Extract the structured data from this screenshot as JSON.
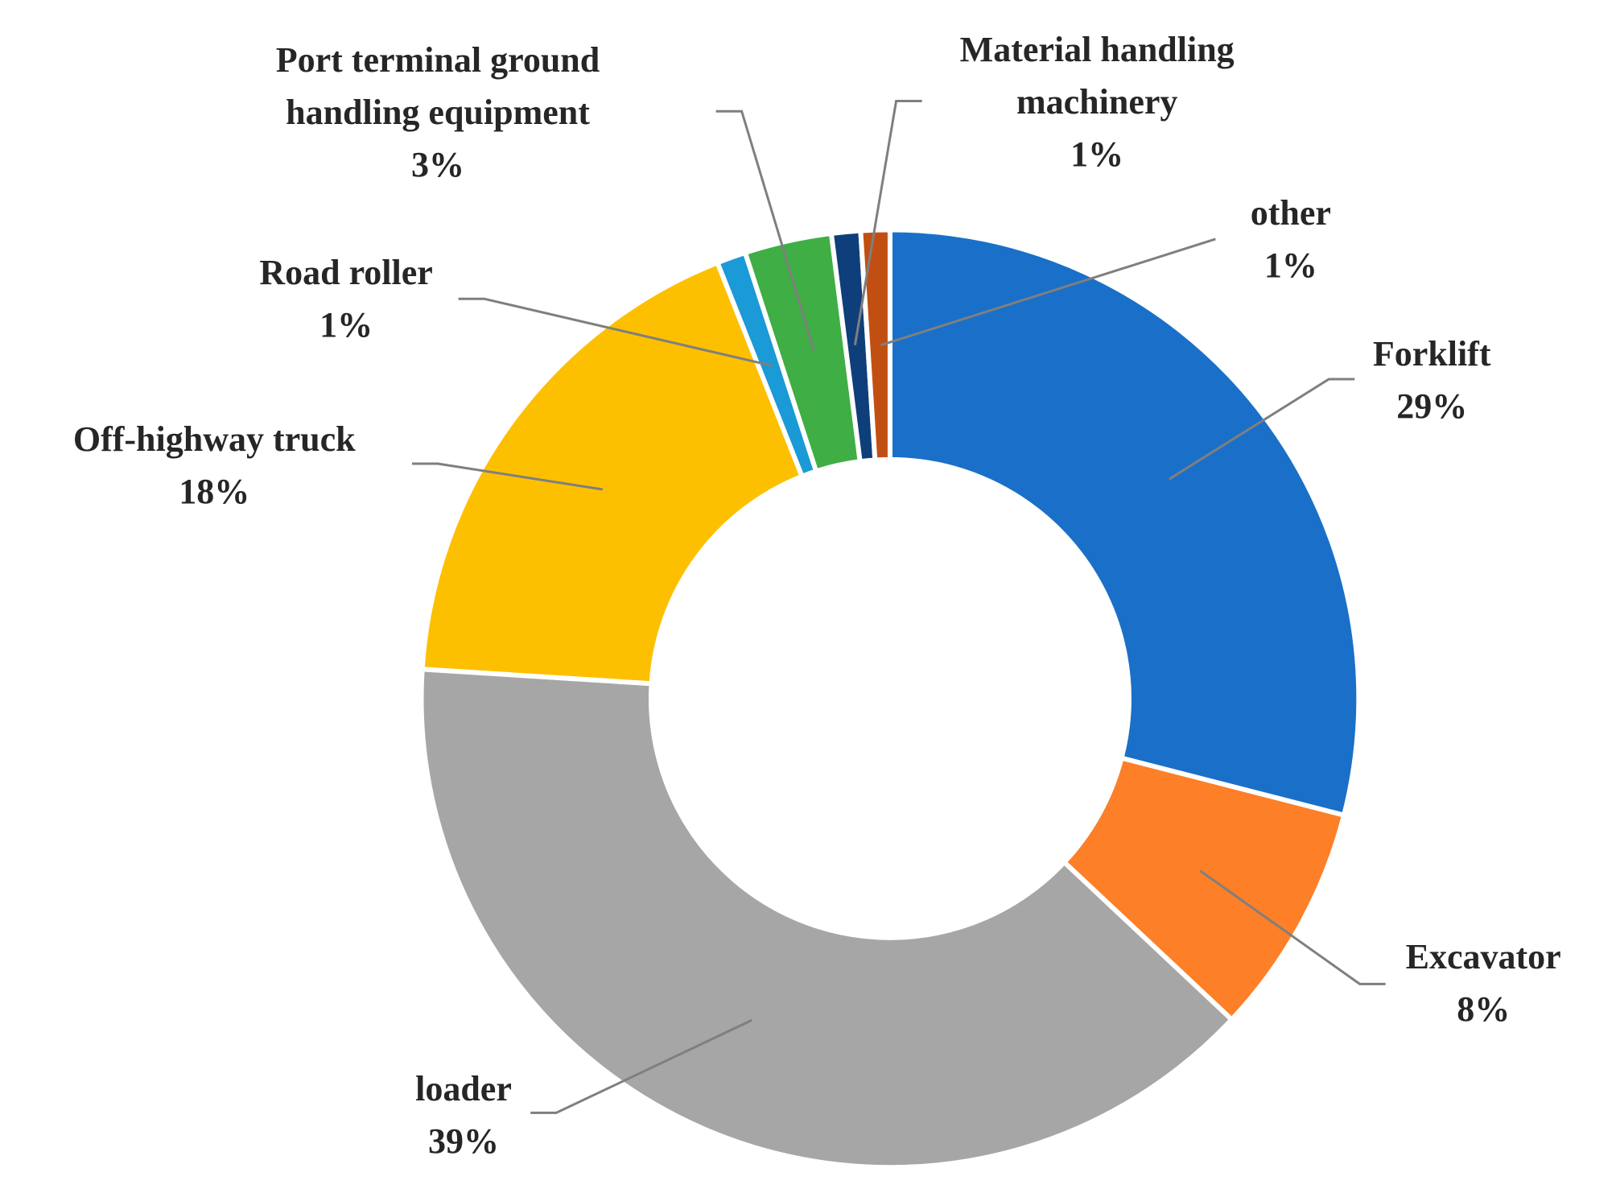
{
  "chart_data": {
    "type": "donut",
    "categories": [
      "Forklift",
      "Excavator",
      "loader",
      "Off-highway truck",
      "Road roller",
      "Port terminal ground handling equipment",
      "Material handling machinery",
      "other"
    ],
    "values": [
      29,
      8,
      39,
      18,
      1,
      3,
      1,
      1
    ],
    "value_labels": [
      "29%",
      "8%",
      "39%",
      "18%",
      "1%",
      "3%",
      "1%",
      "1%"
    ],
    "colors": [
      "#1a70c8",
      "#fd7f27",
      "#a6a6a6",
      "#fdc000",
      "#1a9ad6",
      "#3fae45",
      "#0f3f7a",
      "#c24f12"
    ]
  }
}
